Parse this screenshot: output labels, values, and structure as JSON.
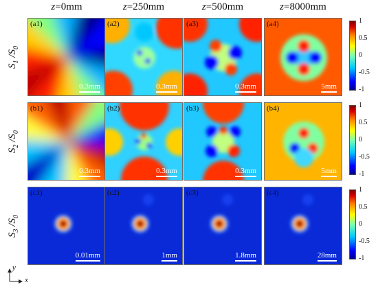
{
  "columns": [
    {
      "var": "z",
      "value": "=0mm"
    },
    {
      "var": "z",
      "value": "=250mm"
    },
    {
      "var": "z",
      "value": "=500mm"
    },
    {
      "var": "z",
      "value": "=8000mm"
    }
  ],
  "rows": [
    {
      "sym": "S",
      "num": "1",
      "den": "S",
      "den_sub": "0",
      "panels": [
        {
          "label": "(a1)",
          "scale": "0.3mm"
        },
        {
          "label": "(a2)",
          "scale": "0.3mm"
        },
        {
          "label": "(a3)",
          "scale": "0.3mm"
        },
        {
          "label": "(a4)",
          "scale": "5mm"
        }
      ]
    },
    {
      "sym": "S",
      "num": "2",
      "den": "S",
      "den_sub": "0",
      "panels": [
        {
          "label": "(b1)",
          "scale": "0.3mm"
        },
        {
          "label": "(b2)",
          "scale": "0.3mm"
        },
        {
          "label": "(b3)",
          "scale": "0.3mm"
        },
        {
          "label": "(b4)",
          "scale": "5mm"
        }
      ]
    },
    {
      "sym": "S",
      "num": "3",
      "den": "S",
      "den_sub": "0",
      "panels": [
        {
          "label": "(c1)",
          "scale": "0.01mm"
        },
        {
          "label": "(c2)",
          "scale": "1mm"
        },
        {
          "label": "(c3)",
          "scale": "1.8mm"
        },
        {
          "label": "(c4)",
          "scale": "28mm"
        }
      ]
    }
  ],
  "colorbar": {
    "ticks": [
      "1",
      "0.5",
      "0",
      "-0.5",
      "-1"
    ],
    "colors": {
      "dark_red": "#800000",
      "red": "#d40000",
      "yellow": "#ffff00",
      "cyan": "#00c8ff",
      "blue": "#0000ff",
      "dark_blue": "#00008b"
    }
  },
  "axes": {
    "x": "x",
    "y": "y"
  }
}
